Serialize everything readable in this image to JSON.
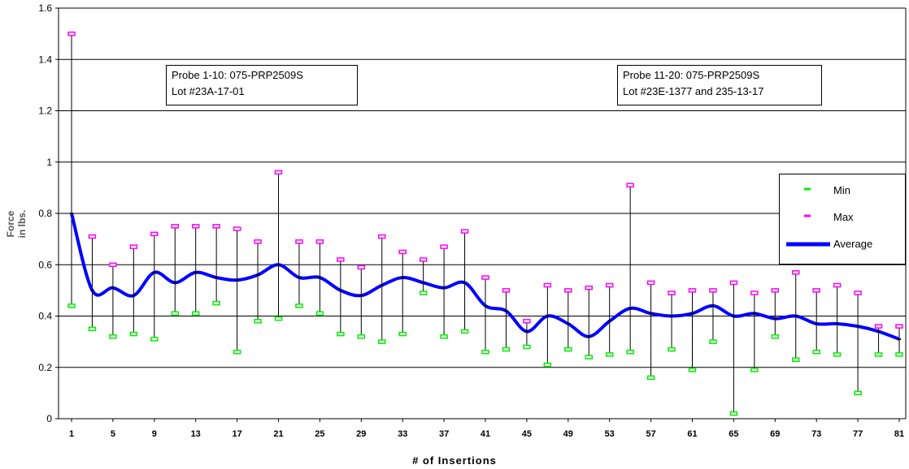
{
  "chart_data": {
    "type": "line",
    "title": "",
    "xlabel": "# of Insertions",
    "ylabel": "Force in lbs.",
    "ylim": [
      0,
      1.6
    ],
    "yticks": [
      "0",
      "0.2",
      "0.4",
      "0.6",
      "0.8",
      "1",
      "1.2",
      "1.4",
      "1.6"
    ],
    "x": [
      1,
      3,
      5,
      7,
      9,
      11,
      13,
      15,
      17,
      19,
      21,
      23,
      25,
      27,
      29,
      31,
      33,
      35,
      37,
      39,
      41,
      43,
      45,
      47,
      49,
      51,
      53,
      55,
      57,
      59,
      61,
      63,
      65,
      67,
      69,
      71,
      73,
      75,
      77,
      79,
      81
    ],
    "xtick_labels": [
      "1",
      "5",
      "9",
      "13",
      "17",
      "21",
      "25",
      "29",
      "33",
      "37",
      "41",
      "45",
      "49",
      "53",
      "57",
      "61",
      "65",
      "69",
      "73",
      "77",
      "81"
    ],
    "series": [
      {
        "name": "Min",
        "color": "#00ee00",
        "values": [
          0.44,
          0.35,
          0.32,
          0.33,
          0.31,
          0.41,
          0.41,
          0.45,
          0.26,
          0.38,
          0.39,
          0.44,
          0.41,
          0.33,
          0.32,
          0.3,
          0.33,
          0.49,
          0.32,
          0.34,
          0.26,
          0.27,
          0.28,
          0.21,
          0.27,
          0.24,
          0.25,
          0.26,
          0.16,
          0.27,
          0.19,
          0.3,
          0.02,
          0.19,
          0.32,
          0.23,
          0.26,
          0.25,
          0.1,
          0.25,
          0.25
        ]
      },
      {
        "name": "Max",
        "color": "#ff00ff",
        "values": [
          1.5,
          0.71,
          0.6,
          0.67,
          0.72,
          0.75,
          0.75,
          0.75,
          0.74,
          0.69,
          0.96,
          0.69,
          0.69,
          0.62,
          0.59,
          0.71,
          0.65,
          0.62,
          0.67,
          0.73,
          0.55,
          0.5,
          0.38,
          0.52,
          0.5,
          0.51,
          0.52,
          0.91,
          0.53,
          0.49,
          0.5,
          0.5,
          0.53,
          0.49,
          0.5,
          0.57,
          0.5,
          0.52,
          0.49,
          0.36,
          0.36
        ]
      },
      {
        "name": "Average",
        "color": "#0000ff",
        "values": [
          0.8,
          0.5,
          0.51,
          0.48,
          0.57,
          0.53,
          0.57,
          0.55,
          0.54,
          0.56,
          0.6,
          0.55,
          0.55,
          0.5,
          0.48,
          0.52,
          0.55,
          0.53,
          0.51,
          0.53,
          0.44,
          0.42,
          0.34,
          0.4,
          0.37,
          0.32,
          0.38,
          0.43,
          0.41,
          0.4,
          0.41,
          0.44,
          0.4,
          0.41,
          0.39,
          0.4,
          0.37,
          0.37,
          0.36,
          0.34,
          0.31
        ]
      }
    ],
    "annotations": [
      {
        "lines": [
          "Probe 1-10: 075-PRP2509S",
          "Lot #23A-17-01"
        ]
      },
      {
        "lines": [
          "Probe 11-20: 075-PRP2509S",
          "Lot #23E-1377 and 235-13-17"
        ]
      }
    ],
    "grid": true,
    "legend_position": "right"
  },
  "legend": {
    "min": "Min",
    "max": "Max",
    "average": "Average"
  }
}
